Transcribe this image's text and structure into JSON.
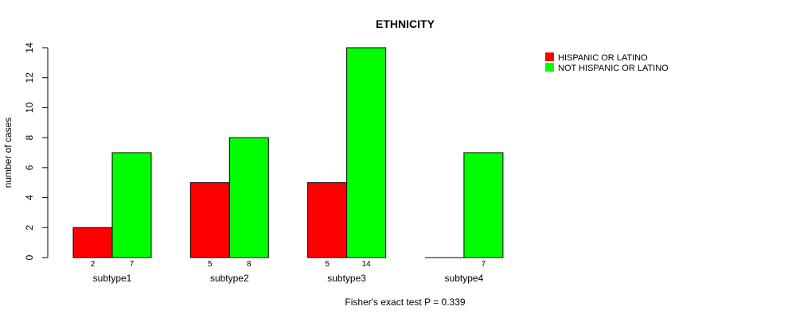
{
  "chart_data": {
    "type": "bar",
    "title": "ETHNICITY",
    "ylabel": "number of cases",
    "xlabel": "",
    "footnote": "Fisher's exact test P = 0.339",
    "categories": [
      "subtype1",
      "subtype2",
      "subtype3",
      "subtype4"
    ],
    "series": [
      {
        "name": "HISPANIC OR LATINO",
        "color": "#ff0000",
        "values": [
          2,
          5,
          5,
          0
        ]
      },
      {
        "name": "NOT HISPANIC OR LATINO",
        "color": "#00ff00",
        "values": [
          7,
          8,
          14,
          7
        ]
      }
    ],
    "value_labels": [
      [
        "2",
        "5",
        "5",
        ""
      ],
      [
        "7",
        "8",
        "14",
        "7"
      ]
    ],
    "ylim": [
      0,
      14
    ],
    "yticks": [
      0,
      2,
      4,
      6,
      8,
      10,
      12,
      14
    ],
    "legend_position": "top-right",
    "grid": false
  }
}
